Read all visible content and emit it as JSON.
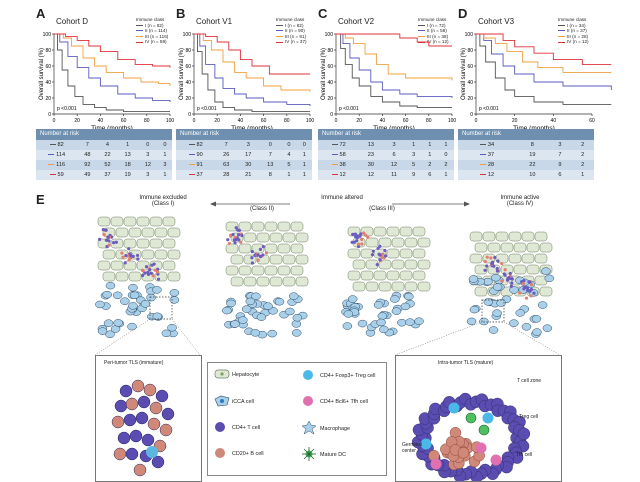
{
  "panels": [
    {
      "letter": "A",
      "cohort": "Cohort D",
      "legend_title": "Immune class",
      "legend": [
        "I  (n = 82)",
        "II  (n = 114)",
        "III  (n = 116)",
        "IV  (n = 59)"
      ],
      "p": "p <0.001",
      "ylabel": "Overall survival (%)",
      "xlabel": "Time (months)",
      "xticks": [
        "0",
        "20",
        "40",
        "60",
        "80",
        "100"
      ],
      "risk_title": "Number at risk",
      "risk": [
        [
          "82",
          "7",
          "4",
          "1",
          "0",
          "0"
        ],
        [
          "114",
          "48",
          "22",
          "13",
          "3",
          "1"
        ],
        [
          "116",
          "92",
          "52",
          "18",
          "12",
          "3"
        ],
        [
          "59",
          "49",
          "37",
          "19",
          "3",
          "1"
        ]
      ]
    },
    {
      "letter": "B",
      "cohort": "Cohort V1",
      "legend_title": "Immune class",
      "legend": [
        "I  (n = 82)",
        "II  (n = 90)",
        "III  (n = 91)",
        "IV  (n = 37)"
      ],
      "p": "p <0.001",
      "ylabel": "Overall survival (%)",
      "xlabel": "Time (months)",
      "xticks": [
        "0",
        "20",
        "40",
        "60",
        "80",
        "100"
      ],
      "risk_title": "Number at risk",
      "risk": [
        [
          "82",
          "7",
          "3",
          "0",
          "0",
          "0"
        ],
        [
          "90",
          "26",
          "17",
          "7",
          "4",
          "1"
        ],
        [
          "91",
          "63",
          "30",
          "13",
          "5",
          "1"
        ],
        [
          "37",
          "28",
          "21",
          "8",
          "1",
          "1"
        ]
      ]
    },
    {
      "letter": "C",
      "cohort": "Cohort V2",
      "legend_title": "Immune class",
      "legend": [
        "I  (n = 72)",
        "II  (n = 58)",
        "III  (n = 38)",
        "IV  (n = 12)"
      ],
      "p": "p <0.001",
      "ylabel": "Overall survival (%)",
      "xlabel": "Time (months)",
      "xticks": [
        "0",
        "20",
        "40",
        "60",
        "80",
        "100"
      ],
      "risk_title": "Number at risk",
      "risk": [
        [
          "72",
          "13",
          "3",
          "1",
          "1",
          "1"
        ],
        [
          "58",
          "23",
          "6",
          "3",
          "1",
          "0"
        ],
        [
          "38",
          "30",
          "12",
          "5",
          "2",
          "2"
        ],
        [
          "12",
          "12",
          "11",
          "9",
          "6",
          "1"
        ]
      ]
    },
    {
      "letter": "D",
      "cohort": "Cohort V3",
      "legend_title": "Immune class",
      "legend": [
        "I  (n = 34)",
        "II  (n = 37)",
        "III  (n = 28)",
        "IV  (n = 12)"
      ],
      "p": "p <0.001",
      "ylabel": "Overall survival (%)",
      "xlabel": "Time (months)",
      "xticks": [
        "0",
        "20",
        "40",
        "60"
      ],
      "risk_title": "Number at risk",
      "risk": [
        [
          "34",
          "8",
          "3",
          "2"
        ],
        [
          "37",
          "19",
          "7",
          "2"
        ],
        [
          "28",
          "22",
          "9",
          "2"
        ],
        [
          "12",
          "10",
          "6",
          "1"
        ]
      ]
    }
  ],
  "yticks": [
    "0",
    "20",
    "40",
    "60",
    "80",
    "100"
  ],
  "colors": {
    "I": "#555555",
    "II": "#5b5bbf",
    "III": "#f0a040",
    "IV": "#e0303a"
  },
  "panelE": {
    "letter": "E",
    "top_left": "Immune excluded",
    "top_left_sub": "(Class I)",
    "top_mid": "Immune altered",
    "sub_ii": "(Class II)",
    "sub_iii": "(Class III)",
    "top_right": "Immune active",
    "top_right_sub": "(Class IV)",
    "box_left_title": "Peri-tumor TLS (immature)",
    "box_right_title": "Intra-tumor TLS (mature)",
    "t_cell_zone": "T cell zone",
    "germinal_center": "Germinal center",
    "treg_label": "Treg cell",
    "tfh_label": "Tfh cell",
    "legend_items": [
      {
        "icon": "hepatocyte-icon",
        "label": "Hepatocyte"
      },
      {
        "icon": "treg-cell-icon",
        "label": "CD4+ Foxp3+ Treg cell"
      },
      {
        "icon": "icca-cell-icon",
        "label": "iCCA cell"
      },
      {
        "icon": "tfh-cell-icon",
        "label": "CD4+ Bcl6+ Tfh cell"
      },
      {
        "icon": "cd4-t-cell-icon",
        "label": "CD4+ T cell"
      },
      {
        "icon": "macrophage-icon",
        "label": "Macrophage"
      },
      {
        "icon": "cd20-b-cell-icon",
        "label": "CD20+ B cell"
      },
      {
        "icon": "mature-dc-icon",
        "label": "Mature DC"
      }
    ]
  }
}
